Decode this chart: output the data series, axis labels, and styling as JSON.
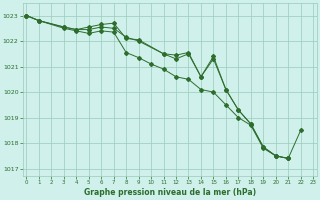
{
  "title": "Graphe pression niveau de la mer (hPa)",
  "background_color": "#cff0eb",
  "grid_color": "#99ccbb",
  "line_color": "#2d6e2d",
  "ylim": [
    1016.7,
    1023.5
  ],
  "yticks": [
    1017,
    1018,
    1019,
    1020,
    1021,
    1022,
    1023
  ],
  "xlim": [
    -0.3,
    23.3
  ],
  "xticks": [
    0,
    1,
    2,
    3,
    4,
    5,
    6,
    7,
    8,
    9,
    10,
    11,
    12,
    13,
    14,
    15,
    16,
    17,
    18,
    19,
    20,
    21,
    22,
    23
  ],
  "line1_x": [
    0,
    1,
    3,
    4,
    5,
    6,
    7,
    8,
    9,
    11,
    12,
    13,
    14,
    15,
    16,
    17,
    18,
    19,
    20,
    21,
    22
  ],
  "line1_y": [
    1023.0,
    1022.8,
    1022.55,
    1022.45,
    1022.55,
    1022.65,
    1022.7,
    1022.1,
    1022.05,
    1021.5,
    1021.45,
    1021.55,
    1020.6,
    1021.4,
    1020.1,
    1019.3,
    1018.75,
    1017.85,
    1017.5,
    1017.4,
    1018.5
  ],
  "line2_x": [
    0,
    1,
    3,
    4,
    5,
    6,
    7,
    8,
    9,
    11,
    12,
    13,
    14,
    15,
    16,
    17,
    18,
    19,
    20,
    21
  ],
  "line2_y": [
    1023.0,
    1022.8,
    1022.55,
    1022.45,
    1022.45,
    1022.55,
    1022.5,
    1022.15,
    1022.0,
    1021.5,
    1021.3,
    1021.5,
    1020.6,
    1021.3,
    1020.1,
    1019.3,
    1018.75,
    1017.85,
    1017.5,
    1017.4
  ],
  "line3_x": [
    0,
    1,
    3,
    4,
    5,
    6,
    7,
    8,
    9,
    10,
    11,
    12,
    13,
    14,
    15,
    16,
    17,
    18,
    19,
    20,
    21
  ],
  "line3_y": [
    1023.0,
    1022.8,
    1022.5,
    1022.4,
    1022.3,
    1022.4,
    1022.35,
    1021.55,
    1021.35,
    1021.1,
    1020.9,
    1020.6,
    1020.5,
    1020.1,
    1020.0,
    1019.5,
    1019.0,
    1018.7,
    1017.8,
    1017.5,
    1017.4
  ]
}
